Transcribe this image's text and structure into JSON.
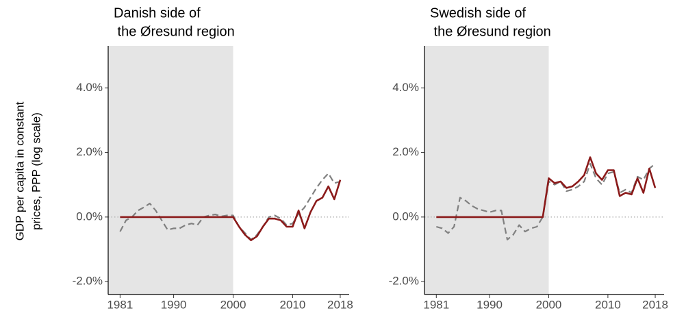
{
  "chart_data": [
    {
      "type": "line",
      "title": [
        "Danish side of",
        " the Øresund region"
      ],
      "ylabel": [
        "GDP per capita in constant",
        "prices, PPP (log scale)"
      ],
      "x": [
        1981,
        1982,
        1983,
        1984,
        1985,
        1986,
        1987,
        1988,
        1989,
        1990,
        1991,
        1992,
        1993,
        1994,
        1995,
        1996,
        1997,
        1998,
        1999,
        2000,
        2001,
        2002,
        2003,
        2004,
        2005,
        2006,
        2007,
        2008,
        2009,
        2010,
        2011,
        2012,
        2013,
        2014,
        2015,
        2016,
        2017,
        2018
      ],
      "series": [
        {
          "color": "#808080",
          "dash": true,
          "values": [
            -0.45,
            -0.1,
            0.0,
            0.2,
            0.3,
            0.42,
            0.2,
            -0.1,
            -0.4,
            -0.35,
            -0.35,
            -0.25,
            -0.2,
            -0.25,
            0.0,
            0.05,
            0.08,
            0.02,
            0.05,
            0.05,
            -0.3,
            -0.5,
            -0.7,
            -0.55,
            -0.3,
            0.0,
            0.05,
            -0.05,
            -0.25,
            -0.2,
            0.1,
            0.3,
            0.6,
            0.9,
            1.15,
            1.35,
            1.05,
            1.1
          ]
        },
        {
          "color": "#8b1a1a",
          "dash": false,
          "values": [
            0,
            0,
            0,
            0,
            0,
            0,
            0,
            0,
            0,
            0,
            0,
            0,
            0,
            0,
            0,
            0,
            0,
            0,
            0,
            0,
            -0.3,
            -0.55,
            -0.72,
            -0.6,
            -0.3,
            -0.05,
            -0.05,
            -0.1,
            -0.3,
            -0.3,
            0.2,
            -0.35,
            0.15,
            0.5,
            0.6,
            0.95,
            0.55,
            1.15
          ]
        }
      ],
      "xlim": [
        1979,
        2019.5
      ],
      "xticks": [
        1981,
        1990,
        2000,
        2010,
        2018
      ],
      "ylim": [
        -2.4,
        5.3
      ],
      "yticks": [
        {
          "value": -2,
          "label": "-2.0%"
        },
        {
          "value": 0,
          "label": "0.0%"
        },
        {
          "value": 2,
          "label": "2.0%"
        },
        {
          "value": 4,
          "label": "4.0%"
        }
      ],
      "shade_end": 2000,
      "hline": 0
    },
    {
      "type": "line",
      "title": [
        "Swedish side of",
        " the Øresund region"
      ],
      "x": [
        1981,
        1982,
        1983,
        1984,
        1985,
        1986,
        1987,
        1988,
        1989,
        1990,
        1991,
        1992,
        1993,
        1994,
        1995,
        1996,
        1997,
        1998,
        1999,
        2000,
        2001,
        2002,
        2003,
        2004,
        2005,
        2006,
        2007,
        2008,
        2009,
        2010,
        2011,
        2012,
        2013,
        2014,
        2015,
        2016,
        2017,
        2018
      ],
      "series": [
        {
          "color": "#808080",
          "dash": true,
          "values": [
            -0.3,
            -0.35,
            -0.5,
            -0.3,
            0.6,
            0.5,
            0.35,
            0.25,
            0.2,
            0.15,
            0.2,
            0.2,
            -0.7,
            -0.55,
            -0.25,
            -0.45,
            -0.35,
            -0.3,
            0.0,
            1.1,
            1.0,
            1.1,
            0.8,
            0.85,
            0.95,
            1.1,
            1.65,
            1.2,
            1.0,
            1.35,
            1.4,
            0.75,
            0.85,
            0.75,
            1.25,
            1.15,
            1.5,
            1.65
          ]
        },
        {
          "color": "#8b1a1a",
          "dash": false,
          "values": [
            0,
            0,
            0,
            0,
            0,
            0,
            0,
            0,
            0,
            0,
            0,
            0,
            0,
            0,
            0,
            0,
            0,
            0,
            0,
            1.2,
            1.05,
            1.1,
            0.9,
            0.95,
            1.1,
            1.3,
            1.85,
            1.35,
            1.15,
            1.45,
            1.45,
            0.65,
            0.75,
            0.7,
            1.2,
            0.75,
            1.5,
            0.9
          ]
        }
      ],
      "xlim": [
        1979,
        2019.5
      ],
      "xticks": [
        1981,
        1990,
        2000,
        2010,
        2018
      ],
      "ylim": [
        -2.4,
        5.3
      ],
      "yticks": [
        {
          "value": -2,
          "label": "-2.0%"
        },
        {
          "value": 0,
          "label": "0.0%"
        },
        {
          "value": 2,
          "label": "2.0%"
        },
        {
          "value": 4,
          "label": "4.0%"
        }
      ],
      "shade_end": 2000,
      "hline": 0
    }
  ]
}
